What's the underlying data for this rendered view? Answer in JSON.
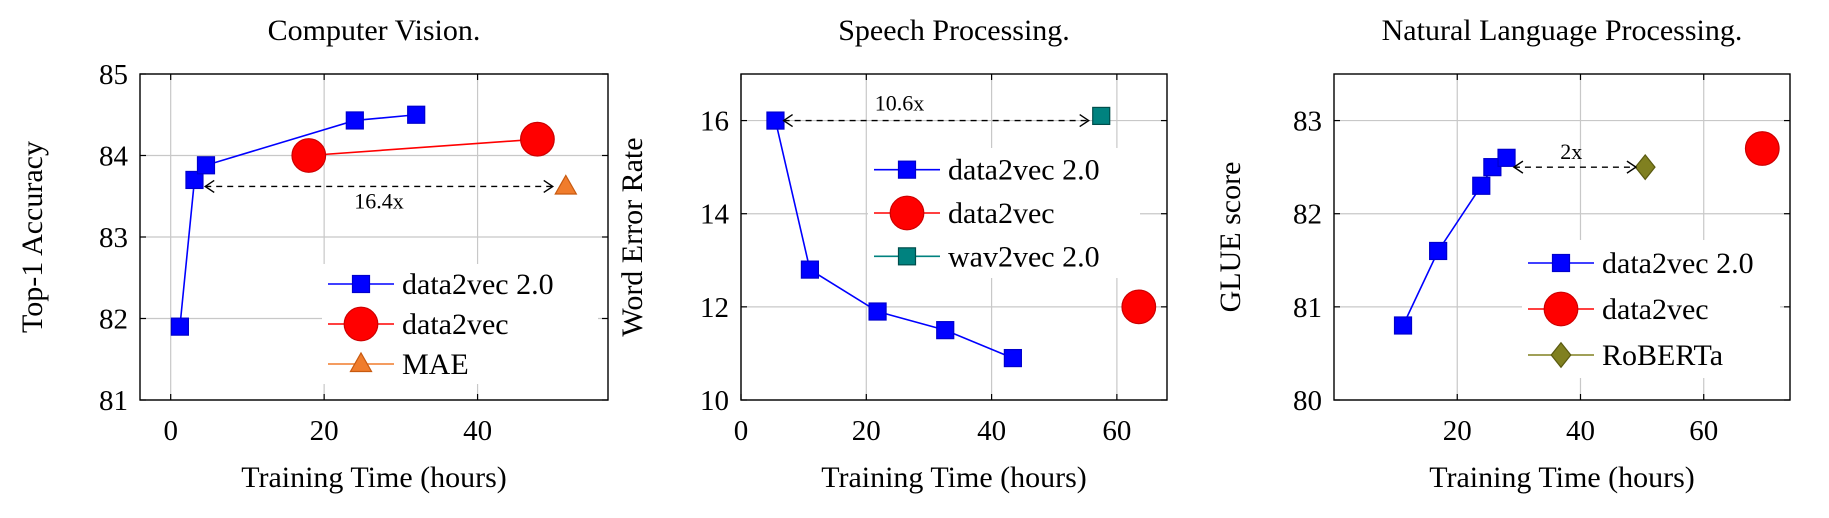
{
  "chart_data": [
    {
      "type": "line",
      "title": "Computer Vision.",
      "xlabel": "Training Time (hours)",
      "ylabel": "Top-1 Accuracy",
      "xlim": [
        -4,
        57
      ],
      "ylim": [
        81,
        85
      ],
      "xticks": [
        0,
        20,
        40
      ],
      "yticks": [
        81,
        82,
        83,
        84,
        85
      ],
      "grid": true,
      "legend_position": "bottom-right",
      "series": [
        {
          "name": "data2vec 2.0",
          "color": "#0000ff",
          "marker": "square",
          "x": [
            1.2,
            3.1,
            4.6,
            24.0,
            32.0
          ],
          "y": [
            81.9,
            83.7,
            83.88,
            84.43,
            84.5
          ]
        },
        {
          "name": "data2vec",
          "color": "#ff0000",
          "marker": "circle",
          "x": [
            18.0,
            47.8
          ],
          "y": [
            84.0,
            84.2
          ]
        },
        {
          "name": "MAE",
          "color": "#f07c2c",
          "marker": "triangle",
          "x": [
            51.5
          ],
          "y": [
            83.62
          ]
        }
      ],
      "annotation": {
        "text": "16.4x",
        "x_from": 4.5,
        "x_to": 49.8,
        "y": 83.62
      }
    },
    {
      "type": "line",
      "title": "Speech Processing.",
      "xlabel": "Training Time (hours)",
      "ylabel": "Word Error Rate",
      "xlim": [
        0,
        68
      ],
      "ylim": [
        10,
        17
      ],
      "xticks": [
        0,
        20,
        40,
        60
      ],
      "yticks": [
        10,
        12,
        14,
        16
      ],
      "grid": true,
      "legend_position": "top-right",
      "series": [
        {
          "name": "data2vec 2.0",
          "color": "#0000ff",
          "marker": "square",
          "x": [
            5.5,
            11.0,
            21.8,
            32.6,
            43.4
          ],
          "y": [
            16.0,
            12.8,
            11.9,
            11.5,
            10.9
          ]
        },
        {
          "name": "data2vec",
          "color": "#ff0000",
          "marker": "circle",
          "x": [
            63.5
          ],
          "y": [
            12.0
          ]
        },
        {
          "name": "wav2vec 2.0",
          "color": "#00827f",
          "marker": "square",
          "x": [
            57.5
          ],
          "y": [
            16.1
          ]
        }
      ],
      "annotation": {
        "text": "10.6x",
        "x_from": 6.8,
        "x_to": 55.5,
        "y": 16.0
      }
    },
    {
      "type": "line",
      "title": "Natural Language Processing.",
      "xlabel": "Training Time (hours)",
      "ylabel": "GLUE score",
      "xlim": [
        0,
        74
      ],
      "ylim": [
        80,
        83.5
      ],
      "xticks": [
        20,
        40,
        60
      ],
      "yticks": [
        80,
        81,
        82,
        83
      ],
      "grid": true,
      "legend_position": "bottom-right",
      "series": [
        {
          "name": "data2vec 2.0",
          "color": "#0000ff",
          "marker": "square",
          "x": [
            11.2,
            16.9,
            23.9,
            25.7,
            28.0
          ],
          "y": [
            80.8,
            81.6,
            82.3,
            82.5,
            82.6
          ]
        },
        {
          "name": "data2vec",
          "color": "#ff0000",
          "marker": "circle",
          "x": [
            69.5
          ],
          "y": [
            82.7
          ]
        },
        {
          "name": "RoBERTa",
          "color": "#808020",
          "marker": "diamond",
          "x": [
            50.5
          ],
          "y": [
            82.5
          ]
        }
      ],
      "annotation": {
        "text": "2x",
        "x_from": 29.2,
        "x_to": 49.0,
        "y": 82.5
      }
    }
  ]
}
